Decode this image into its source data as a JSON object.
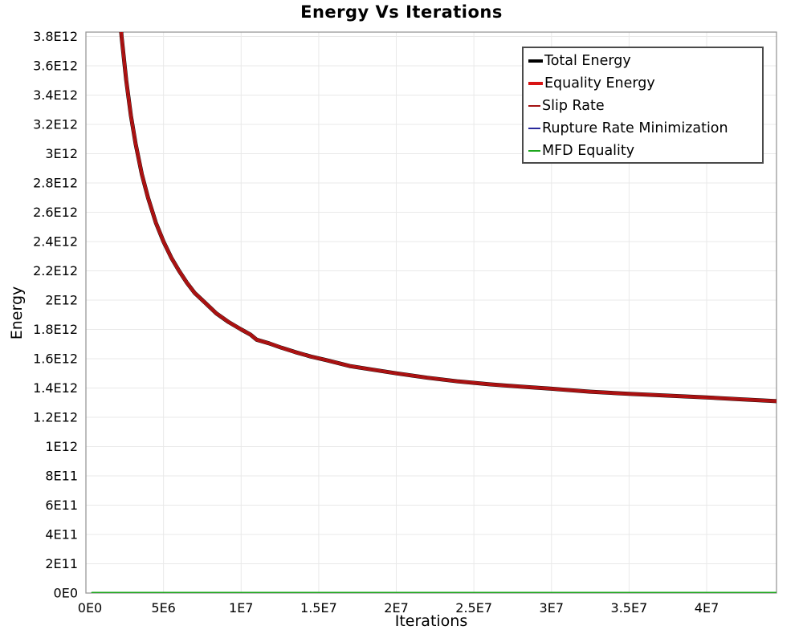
{
  "title": "Energy Vs Iterations",
  "axes": {
    "x_label": "Iterations",
    "y_label": "Energy"
  },
  "chart_data": {
    "type": "line",
    "title": "Energy Vs Iterations",
    "xlabel": "Iterations",
    "ylabel": "Energy",
    "xlim": [
      0,
      44500000
    ],
    "ylim": [
      0,
      3830000000000
    ],
    "grid": true,
    "legend_position": "top-right",
    "x_ticks": [
      {
        "v": 0,
        "label": "0E0"
      },
      {
        "v": 5000000,
        "label": "5E6"
      },
      {
        "v": 10000000,
        "label": "1E7"
      },
      {
        "v": 15000000,
        "label": "1.5E7"
      },
      {
        "v": 20000000,
        "label": "2E7"
      },
      {
        "v": 25000000,
        "label": "2.5E7"
      },
      {
        "v": 30000000,
        "label": "3E7"
      },
      {
        "v": 35000000,
        "label": "3.5E7"
      },
      {
        "v": 40000000,
        "label": "4E7"
      }
    ],
    "y_ticks": [
      {
        "v": 0,
        "label": "0E0"
      },
      {
        "v": 200000000000,
        "label": "2E11"
      },
      {
        "v": 400000000000,
        "label": "4E11"
      },
      {
        "v": 600000000000,
        "label": "6E11"
      },
      {
        "v": 800000000000,
        "label": "8E11"
      },
      {
        "v": 1000000000000,
        "label": "1E12"
      },
      {
        "v": 1200000000000,
        "label": "1.2E12"
      },
      {
        "v": 1400000000000,
        "label": "1.4E12"
      },
      {
        "v": 1600000000000,
        "label": "1.6E12"
      },
      {
        "v": 1800000000000,
        "label": "1.8E12"
      },
      {
        "v": 2000000000000,
        "label": "2E12"
      },
      {
        "v": 2200000000000,
        "label": "2.2E12"
      },
      {
        "v": 2400000000000,
        "label": "2.4E12"
      },
      {
        "v": 2600000000000,
        "label": "2.6E12"
      },
      {
        "v": 2800000000000,
        "label": "2.8E12"
      },
      {
        "v": 3000000000000,
        "label": "3E12"
      },
      {
        "v": 3200000000000,
        "label": "3.2E12"
      },
      {
        "v": 3400000000000,
        "label": "3.4E12"
      },
      {
        "v": 3600000000000,
        "label": "3.6E12"
      },
      {
        "v": 3800000000000,
        "label": "3.8E12"
      }
    ],
    "series": [
      {
        "name": "Total Energy",
        "color": "#000000",
        "width": 5,
        "thick_legend": true,
        "points": "main_curve"
      },
      {
        "name": "Equality Energy",
        "color": "#d81414",
        "width": 4,
        "thick_legend": true,
        "points": "main_curve"
      },
      {
        "name": "Slip Rate",
        "color": "#a41212",
        "width": 2.6,
        "thick_legend": false,
        "points": "main_curve"
      },
      {
        "name": "Rupture Rate Minimization",
        "color": "#28289c",
        "width": 2,
        "thick_legend": false,
        "points": "zero_line"
      },
      {
        "name": "MFD Equality",
        "color": "#1ca61c",
        "width": 2.2,
        "thick_legend": false,
        "points": "zero_line"
      }
    ],
    "main_curve": [
      [
        1900000,
        4350000000000
      ],
      [
        2100000,
        4050000000000
      ],
      [
        2300000,
        3800000000000
      ],
      [
        2600000,
        3500000000000
      ],
      [
        2900000,
        3260000000000
      ],
      [
        3200000,
        3070000000000
      ],
      [
        3600000,
        2860000000000
      ],
      [
        4000000,
        2700000000000
      ],
      [
        4500000,
        2530000000000
      ],
      [
        5000000,
        2400000000000
      ],
      [
        5500000,
        2290000000000
      ],
      [
        6000000,
        2200000000000
      ],
      [
        6500000,
        2120000000000
      ],
      [
        7000000,
        2050000000000
      ],
      [
        7700000,
        1980000000000
      ],
      [
        8400000,
        1910000000000
      ],
      [
        9200000,
        1850000000000
      ],
      [
        10000000,
        1800000000000
      ],
      [
        10600000,
        1765000000000
      ],
      [
        11000000,
        1730000000000
      ],
      [
        11800000,
        1705000000000
      ],
      [
        12600000,
        1675000000000
      ],
      [
        13500000,
        1645000000000
      ],
      [
        14500000,
        1615000000000
      ],
      [
        15500000,
        1590000000000
      ],
      [
        17000000,
        1550000000000
      ],
      [
        18500000,
        1525000000000
      ],
      [
        20000000,
        1500000000000
      ],
      [
        22000000,
        1470000000000
      ],
      [
        24000000,
        1445000000000
      ],
      [
        26000000,
        1425000000000
      ],
      [
        28000000,
        1410000000000
      ],
      [
        30000000,
        1395000000000
      ],
      [
        32500000,
        1375000000000
      ],
      [
        35000000,
        1360000000000
      ],
      [
        37500000,
        1348000000000
      ],
      [
        40000000,
        1336000000000
      ],
      [
        42000000,
        1324000000000
      ],
      [
        44500000,
        1310000000000
      ]
    ],
    "zero_line": [
      [
        400000,
        2000000000
      ],
      [
        44500000,
        2000000000
      ]
    ]
  }
}
